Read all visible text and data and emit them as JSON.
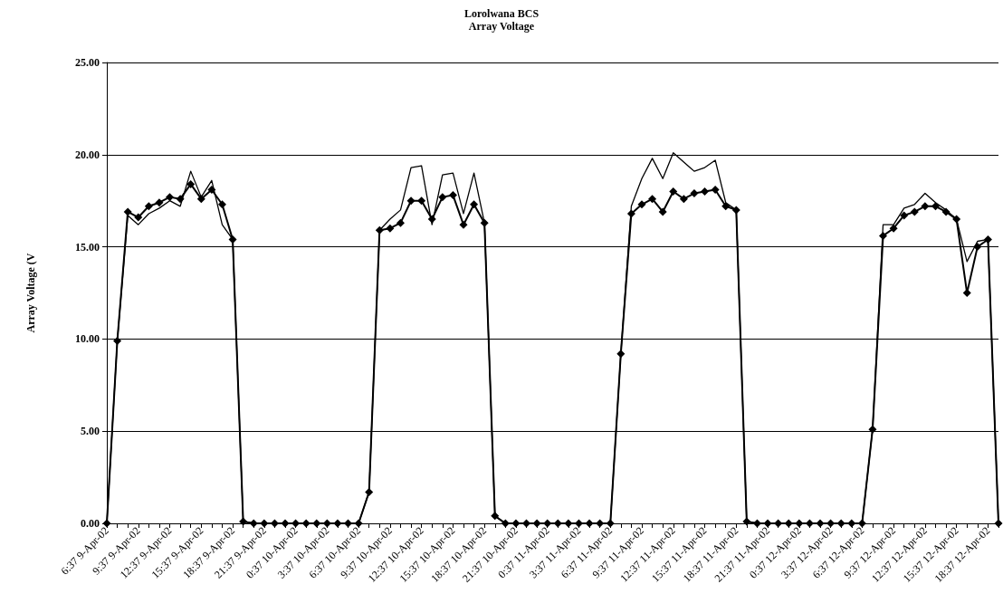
{
  "chart_data": {
    "type": "line",
    "title": "Lorolwana BCS",
    "subtitle": "Array Voltage",
    "ylabel": "Array Voltage (V",
    "categories": [
      "6:37 9-Apr-02",
      null,
      null,
      "9:37 9-Apr-02",
      null,
      null,
      "12:37 9-Apr-02",
      null,
      null,
      "15:37 9-Apr-02",
      null,
      null,
      "18:37 9-Apr-02",
      null,
      null,
      "21:37 9-Apr-02",
      null,
      null,
      "0:37 10-Apr-02",
      null,
      null,
      "3:37 10-Apr-02",
      null,
      null,
      "6:37 10-Apr-02",
      null,
      null,
      "9:37 10-Apr-02",
      null,
      null,
      "12:37 10-Apr-02",
      null,
      null,
      "15:37 10-Apr-02",
      null,
      null,
      "18:37 10-Apr-02",
      null,
      null,
      "21:37 10-Apr-02",
      null,
      null,
      "0:37 11-Apr-02",
      null,
      null,
      "3:37 11-Apr-02",
      null,
      null,
      "6:37 11-Apr-02",
      null,
      null,
      "9:37 11-Apr-02",
      null,
      null,
      "12:37 11-Apr-02",
      null,
      null,
      "15:37 11-Apr-02",
      null,
      null,
      "18:37 11-Apr-02",
      null,
      null,
      "21:37 11-Apr-02",
      null,
      null,
      "0:37 12-Apr-02",
      null,
      null,
      "3:37 12-Apr-02",
      null,
      null,
      "6:37 12-Apr-02",
      null,
      null,
      "9:37 12-Apr-02",
      null,
      null,
      "12:37 12-Apr-02",
      null,
      null,
      "15:37 12-Apr-02",
      null,
      null,
      "18:37 12-Apr-02",
      null
    ],
    "series": [
      {
        "color": "#000000",
        "marker": "diamond",
        "values": [
          0,
          9.9,
          16.9,
          16.6,
          17.2,
          17.4,
          17.7,
          17.6,
          18.4,
          17.6,
          18.1,
          17.3,
          15.4,
          0.1,
          0,
          0,
          0,
          0,
          0,
          0,
          0,
          0,
          0,
          0,
          0,
          1.7,
          15.9,
          16.0,
          16.3,
          17.5,
          17.5,
          16.5,
          17.7,
          17.8,
          16.2,
          17.3,
          16.3,
          0.4,
          0,
          0,
          0,
          0,
          0,
          0,
          0,
          0,
          0,
          0,
          0,
          9.2,
          16.8,
          17.3,
          17.6,
          16.9,
          18.0,
          17.6,
          17.9,
          18.0,
          18.1,
          17.2,
          17.0,
          0.1,
          0,
          0,
          0,
          0,
          0,
          0,
          0,
          0,
          0,
          0,
          0,
          5.1,
          15.6,
          16.0,
          16.7,
          16.9,
          17.2,
          17.2,
          16.9,
          16.5,
          12.5,
          15.0,
          15.4,
          0
        ]
      },
      {
        "color": "#000000",
        "marker": "none",
        "values": [
          0,
          9.9,
          16.7,
          16.2,
          16.8,
          17.1,
          17.5,
          17.2,
          19.1,
          17.7,
          18.6,
          16.2,
          15.4,
          0.1,
          0,
          0,
          0,
          0,
          0,
          0,
          0,
          0,
          0,
          0,
          0,
          1.7,
          15.9,
          16.5,
          17.0,
          19.3,
          19.4,
          16.2,
          18.9,
          19.0,
          16.8,
          19.0,
          16.3,
          0.4,
          0,
          0,
          0,
          0,
          0,
          0,
          0,
          0,
          0,
          0,
          0,
          9.2,
          17.2,
          18.7,
          19.8,
          18.7,
          20.1,
          19.6,
          19.1,
          19.3,
          19.7,
          17.4,
          17.0,
          0.1,
          0,
          0,
          0,
          0,
          0,
          0,
          0,
          0,
          0,
          0,
          0,
          5.1,
          16.2,
          16.2,
          17.1,
          17.3,
          17.9,
          17.4,
          17.0,
          16.5,
          14.2,
          15.3,
          15.4,
          0
        ]
      }
    ],
    "ylim": [
      0,
      25
    ],
    "yticks": [
      {
        "value": 0,
        "label": "0.00"
      },
      {
        "value": 5,
        "label": "5.00"
      },
      {
        "value": 10,
        "label": "10.00"
      },
      {
        "value": 15,
        "label": "15.00"
      },
      {
        "value": 20,
        "label": "20.00"
      },
      {
        "value": 25,
        "label": "25.00"
      }
    ],
    "grid": "y",
    "line_style": "solid"
  }
}
